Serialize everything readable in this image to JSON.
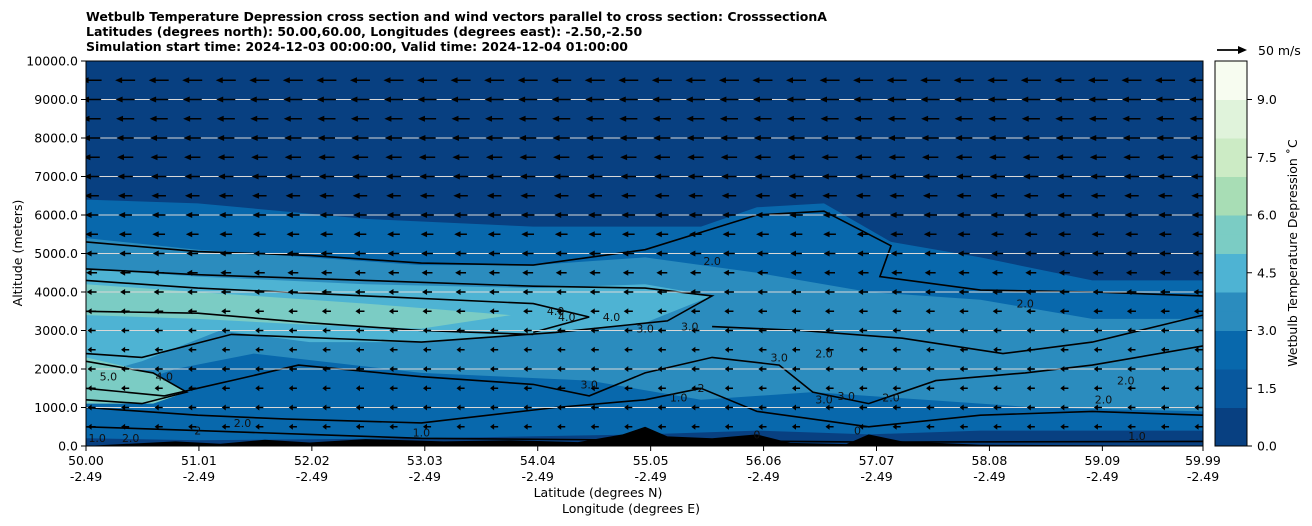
{
  "title": {
    "line1": "Wetbulb Temperature Depression cross section and wind vectors parallel to cross section: CrosssectionA",
    "line2": "Latitudes (degrees north): 50.00,60.00, Longitudes (degrees east): -2.50,-2.50",
    "line3": "Simulation start time: 2024-12-03 00:00:00, Valid time: 2024-12-04 01:00:00"
  },
  "chart_data": {
    "type": "heatmap",
    "subtype": "filled contour cross-section with wind vectors",
    "ylabel": "Altitude (meters)",
    "xlabel_primary": "Latitude (degrees N)",
    "xlabel_secondary": "Longitude (degrees E)",
    "ylim": [
      0,
      10000
    ],
    "xlim": [
      50.0,
      59.99
    ],
    "y_ticks": [
      "0.0",
      "1000.0",
      "2000.0",
      "3000.0",
      "4000.0",
      "5000.0",
      "6000.0",
      "7000.0",
      "8000.0",
      "9000.0",
      "10000.0"
    ],
    "y_tick_values": [
      0,
      1000,
      2000,
      3000,
      4000,
      5000,
      6000,
      7000,
      8000,
      9000,
      10000
    ],
    "x_ticks_lat": [
      "50.00",
      "51.01",
      "52.02",
      "53.03",
      "54.04",
      "55.05",
      "56.06",
      "57.07",
      "58.08",
      "59.09",
      "59.99"
    ],
    "x_ticks_lon": [
      "-2.49",
      "-2.49",
      "-2.49",
      "-2.49",
      "-2.49",
      "-2.49",
      "-2.49",
      "-2.49",
      "-2.49",
      "-2.49",
      "-2.49"
    ],
    "x_tick_values": [
      50.0,
      51.01,
      52.02,
      53.03,
      54.04,
      55.05,
      56.06,
      57.07,
      58.08,
      59.09,
      59.99
    ],
    "grid": "horizontal",
    "colorbar": {
      "label": "Wetbulb Temperature Depression ˚C",
      "ticks": [
        "0.0",
        "1.5",
        "3.0",
        "4.5",
        "6.0",
        "7.5",
        "9.0"
      ],
      "tick_values": [
        0,
        1.5,
        3.0,
        4.5,
        6.0,
        7.5,
        9.0
      ],
      "range": [
        0,
        10
      ],
      "colormap": "GnBu_r",
      "colors": [
        "#084081",
        "#0868ac",
        "#2b8cbe",
        "#4eb3d3",
        "#7bccc4",
        "#a8ddb5",
        "#ccebc5",
        "#e0f3db",
        "#f7fcf0"
      ]
    },
    "quiver_key": {
      "label": "50 m/s",
      "value": 50
    },
    "contour_labels": [
      {
        "text": "2.0",
        "lat": 55.6,
        "alt": 4700
      },
      {
        "text": "2.0",
        "lat": 58.4,
        "alt": 3600
      },
      {
        "text": "4.0",
        "lat": 54.2,
        "alt": 3400
      },
      {
        "text": "4.0",
        "lat": 54.3,
        "alt": 3250
      },
      {
        "text": "4.0",
        "lat": 54.7,
        "alt": 3250
      },
      {
        "text": "3.0",
        "lat": 55.0,
        "alt": 2950
      },
      {
        "text": "3.0",
        "lat": 55.4,
        "alt": 3000
      },
      {
        "text": "5.0",
        "lat": 50.2,
        "alt": 1700
      },
      {
        "text": "4.0",
        "lat": 50.7,
        "alt": 1700
      },
      {
        "text": "3.0",
        "lat": 56.2,
        "alt": 2200
      },
      {
        "text": "2.0",
        "lat": 56.6,
        "alt": 2300
      },
      {
        "text": "3.0",
        "lat": 54.5,
        "alt": 1500
      },
      {
        "text": "1.0",
        "lat": 55.3,
        "alt": 1150
      },
      {
        "text": "2",
        "lat": 55.5,
        "alt": 1400
      },
      {
        "text": "3.0",
        "lat": 56.6,
        "alt": 1100
      },
      {
        "text": "3.0",
        "lat": 56.8,
        "alt": 1200
      },
      {
        "text": "2.0",
        "lat": 57.2,
        "alt": 1150
      },
      {
        "text": "2.0",
        "lat": 59.3,
        "alt": 1600
      },
      {
        "text": "2.0",
        "lat": 59.1,
        "alt": 1100
      },
      {
        "text": "2.0",
        "lat": 51.4,
        "alt": 500
      },
      {
        "text": "1.0",
        "lat": 53.0,
        "alt": 250
      },
      {
        "text": "2.0",
        "lat": 50.4,
        "alt": 100
      },
      {
        "text": "1.0",
        "lat": 50.1,
        "alt": 100
      },
      {
        "text": "2",
        "lat": 51.0,
        "alt": 300
      },
      {
        "text": "0",
        "lat": 56.0,
        "alt": 200
      },
      {
        "text": "1.0",
        "lat": 59.4,
        "alt": 150
      },
      {
        "text": "0",
        "lat": 56.9,
        "alt": 300
      }
    ]
  }
}
